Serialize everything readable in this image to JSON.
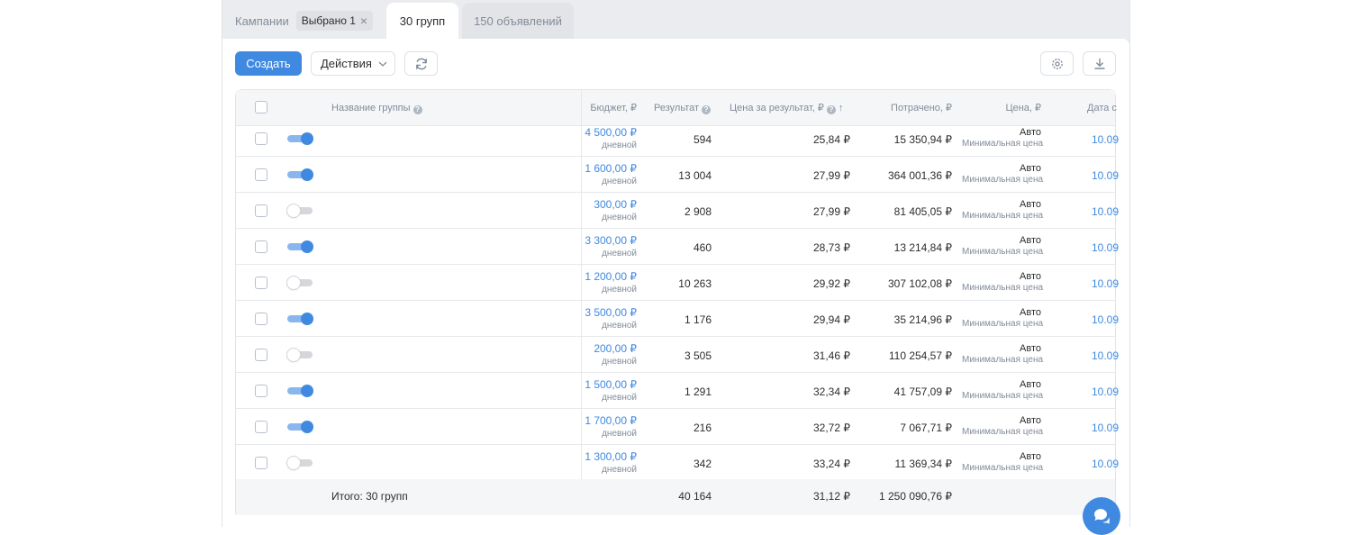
{
  "tabs": {
    "campaigns_label": "Кампании",
    "selected_chip": "Выбрано 1",
    "groups_label": "30 групп",
    "ads_label": "150 объявлений"
  },
  "toolbar": {
    "create_label": "Создать",
    "actions_label": "Действия"
  },
  "table": {
    "headers": {
      "name": "Название группы",
      "budget": "Бюджет, ₽",
      "result": "Результат",
      "cost_per_result": "Цена за результат, ₽",
      "spent": "Потрачено, ₽",
      "price": "Цена, ₽",
      "date": "Дата с"
    },
    "rows": [
      {
        "enabled": true,
        "budget": "4 500,00 ₽",
        "budget_type": "дневной",
        "result": "594",
        "cost_per_result": "25,84 ₽",
        "spent": "15 350,94 ₽",
        "price": "Авто",
        "price_sub": "Минимальная цена",
        "date": "10.09"
      },
      {
        "enabled": true,
        "budget": "1 600,00 ₽",
        "budget_type": "дневной",
        "result": "13 004",
        "cost_per_result": "27,99 ₽",
        "spent": "364 001,36 ₽",
        "price": "Авто",
        "price_sub": "Минимальная цена",
        "date": "10.09"
      },
      {
        "enabled": false,
        "budget": "300,00 ₽",
        "budget_type": "дневной",
        "result": "2 908",
        "cost_per_result": "27,99 ₽",
        "spent": "81 405,05 ₽",
        "price": "Авто",
        "price_sub": "Минимальная цена",
        "date": "10.09"
      },
      {
        "enabled": true,
        "budget": "3 300,00 ₽",
        "budget_type": "дневной",
        "result": "460",
        "cost_per_result": "28,73 ₽",
        "spent": "13 214,84 ₽",
        "price": "Авто",
        "price_sub": "Минимальная цена",
        "date": "10.09"
      },
      {
        "enabled": false,
        "budget": "1 200,00 ₽",
        "budget_type": "дневной",
        "result": "10 263",
        "cost_per_result": "29,92 ₽",
        "spent": "307 102,08 ₽",
        "price": "Авто",
        "price_sub": "Минимальная цена",
        "date": "10.09"
      },
      {
        "enabled": true,
        "budget": "3 500,00 ₽",
        "budget_type": "дневной",
        "result": "1 176",
        "cost_per_result": "29,94 ₽",
        "spent": "35 214,96 ₽",
        "price": "Авто",
        "price_sub": "Минимальная цена",
        "date": "10.09"
      },
      {
        "enabled": false,
        "budget": "200,00 ₽",
        "budget_type": "дневной",
        "result": "3 505",
        "cost_per_result": "31,46 ₽",
        "spent": "110 254,57 ₽",
        "price": "Авто",
        "price_sub": "Минимальная цена",
        "date": "10.09"
      },
      {
        "enabled": true,
        "budget": "1 500,00 ₽",
        "budget_type": "дневной",
        "result": "1 291",
        "cost_per_result": "32,34 ₽",
        "spent": "41 757,09 ₽",
        "price": "Авто",
        "price_sub": "Минимальная цена",
        "date": "10.09"
      },
      {
        "enabled": true,
        "budget": "1 700,00 ₽",
        "budget_type": "дневной",
        "result": "216",
        "cost_per_result": "32,72 ₽",
        "spent": "7 067,71 ₽",
        "price": "Авто",
        "price_sub": "Минимальная цена",
        "date": "10.09"
      },
      {
        "enabled": false,
        "budget": "1 300,00 ₽",
        "budget_type": "дневной",
        "result": "342",
        "cost_per_result": "33,24 ₽",
        "spent": "11 369,34 ₽",
        "price": "Авто",
        "price_sub": "Минимальная цена",
        "date": "10.09"
      }
    ],
    "footer": {
      "total_label": "Итого: 30 групп",
      "result": "40 164",
      "cost_per_result": "31,12 ₽",
      "spent": "1 250 090,76 ₽"
    }
  },
  "colors": {
    "accent": "#3f8ae0",
    "toggle_on_track": "#8ab6ee",
    "muted_text": "#818c99"
  }
}
